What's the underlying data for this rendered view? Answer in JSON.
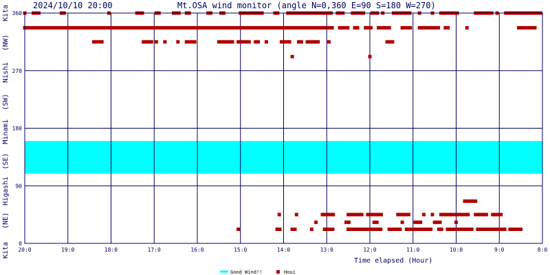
{
  "header": {
    "datetime": "2024/10/10 20:00",
    "title": "Mt.OSA wind monitor (angle N=0,360 E=90 S=180 W=270)"
  },
  "chart_data": {
    "type": "scatter",
    "title": "Mt.OSA wind monitor (angle N=0,360 E=90 S=180 W=270)",
    "xlabel": "Time elapsed (Hour)",
    "ylabel": "",
    "x_unit": "hours elapsed (20:0 = 0, 8:0 = 12)",
    "x_tick_labels": [
      "20:0",
      "19:0",
      "18:0",
      "17:0",
      "16:0",
      "15:0",
      "14:0",
      "13:0",
      "12:0",
      "11:0",
      "10:0",
      "9:0",
      "8:0"
    ],
    "y_tick_labels": [
      "0",
      "90",
      "180",
      "270",
      "360"
    ],
    "xlim": [
      0,
      12
    ],
    "ylim": [
      0,
      360
    ],
    "side_labels": [
      "Kita",
      "(NE)",
      "Higashi",
      "(SE)",
      "Minami",
      "(SW)",
      "Nishi",
      "(NW)",
      "Kita"
    ],
    "good_wind_band": {
      "from": 109,
      "to": 160,
      "color": "#00ffff",
      "label": "Good Wind!!"
    },
    "series": [
      {
        "name": "Houi",
        "color": "#b00000",
        "runs": [
          {
            "x0": 0.0,
            "x1": 7.15,
            "y": 337
          },
          {
            "x0": 7.3,
            "x1": 7.5,
            "y": 337
          },
          {
            "x0": 7.65,
            "x1": 7.75,
            "y": 337
          },
          {
            "x0": 7.9,
            "x1": 8.05,
            "y": 337
          },
          {
            "x0": 8.2,
            "x1": 8.5,
            "y": 337
          },
          {
            "x0": 8.75,
            "x1": 8.95,
            "y": 337
          },
          {
            "x0": 9.15,
            "x1": 9.6,
            "y": 337
          },
          {
            "x0": 9.75,
            "x1": 9.85,
            "y": 337
          },
          {
            "x0": 10.25,
            "x1": 10.3,
            "y": 337
          },
          {
            "x0": 11.45,
            "x1": 11.85,
            "y": 337
          },
          {
            "x0": 0.0,
            "x1": 0.05,
            "y": 360
          },
          {
            "x0": 0.2,
            "x1": 0.35,
            "y": 360
          },
          {
            "x0": 0.85,
            "x1": 0.95,
            "y": 360
          },
          {
            "x0": 1.95,
            "x1": 2.0,
            "y": 360
          },
          {
            "x0": 2.6,
            "x1": 2.75,
            "y": 360
          },
          {
            "x0": 3.05,
            "x1": 3.15,
            "y": 360
          },
          {
            "x0": 3.45,
            "x1": 3.6,
            "y": 360
          },
          {
            "x0": 3.75,
            "x1": 3.85,
            "y": 360
          },
          {
            "x0": 4.25,
            "x1": 4.35,
            "y": 360
          },
          {
            "x0": 4.55,
            "x1": 4.65,
            "y": 360
          },
          {
            "x0": 5.0,
            "x1": 5.55,
            "y": 360
          },
          {
            "x0": 5.8,
            "x1": 5.9,
            "y": 360
          },
          {
            "x0": 6.1,
            "x1": 7.1,
            "y": 360
          },
          {
            "x0": 7.25,
            "x1": 7.4,
            "y": 360
          },
          {
            "x0": 7.6,
            "x1": 7.9,
            "y": 360
          },
          {
            "x0": 8.05,
            "x1": 8.2,
            "y": 360
          },
          {
            "x0": 8.3,
            "x1": 8.35,
            "y": 360
          },
          {
            "x0": 8.55,
            "x1": 8.95,
            "y": 360
          },
          {
            "x0": 9.15,
            "x1": 9.2,
            "y": 360
          },
          {
            "x0": 9.45,
            "x1": 9.5,
            "y": 360
          },
          {
            "x0": 9.65,
            "x1": 10.05,
            "y": 360
          },
          {
            "x0": 10.45,
            "x1": 10.85,
            "y": 360
          },
          {
            "x0": 10.95,
            "x1": 11.0,
            "y": 360
          },
          {
            "x0": 11.15,
            "x1": 12.0,
            "y": 360
          },
          {
            "x0": 1.6,
            "x1": 1.8,
            "y": 315
          },
          {
            "x0": 2.75,
            "x1": 2.95,
            "y": 315
          },
          {
            "x0": 3.05,
            "x1": 3.1,
            "y": 315
          },
          {
            "x0": 3.25,
            "x1": 3.3,
            "y": 315
          },
          {
            "x0": 3.55,
            "x1": 3.6,
            "y": 315
          },
          {
            "x0": 3.75,
            "x1": 3.95,
            "y": 315
          },
          {
            "x0": 4.5,
            "x1": 4.85,
            "y": 315
          },
          {
            "x0": 4.95,
            "x1": 5.2,
            "y": 315
          },
          {
            "x0": 5.35,
            "x1": 5.45,
            "y": 315
          },
          {
            "x0": 5.6,
            "x1": 5.65,
            "y": 315
          },
          {
            "x0": 5.95,
            "x1": 6.15,
            "y": 315
          },
          {
            "x0": 6.35,
            "x1": 6.45,
            "y": 315
          },
          {
            "x0": 6.55,
            "x1": 6.85,
            "y": 315
          },
          {
            "x0": 7.05,
            "x1": 7.1,
            "y": 315
          },
          {
            "x0": 8.4,
            "x1": 8.55,
            "y": 315
          },
          {
            "x0": 6.2,
            "x1": 6.25,
            "y": 292
          },
          {
            "x0": 8.0,
            "x1": 8.05,
            "y": 292
          },
          {
            "x0": 10.2,
            "x1": 10.45,
            "y": 66
          },
          {
            "x0": 5.9,
            "x1": 5.95,
            "y": 45
          },
          {
            "x0": 6.3,
            "x1": 6.35,
            "y": 45
          },
          {
            "x0": 6.9,
            "x1": 7.15,
            "y": 45
          },
          {
            "x0": 7.5,
            "x1": 7.85,
            "y": 45
          },
          {
            "x0": 7.95,
            "x1": 8.3,
            "y": 45
          },
          {
            "x0": 8.65,
            "x1": 8.95,
            "y": 45
          },
          {
            "x0": 9.25,
            "x1": 9.3,
            "y": 45
          },
          {
            "x0": 9.45,
            "x1": 9.5,
            "y": 45
          },
          {
            "x0": 9.65,
            "x1": 10.3,
            "y": 45
          },
          {
            "x0": 10.45,
            "x1": 10.75,
            "y": 45
          },
          {
            "x0": 10.85,
            "x1": 11.05,
            "y": 45
          },
          {
            "x0": 6.75,
            "x1": 6.8,
            "y": 33
          },
          {
            "x0": 7.45,
            "x1": 7.55,
            "y": 33
          },
          {
            "x0": 8.1,
            "x1": 8.2,
            "y": 33
          },
          {
            "x0": 8.75,
            "x1": 8.8,
            "y": 33
          },
          {
            "x0": 9.05,
            "x1": 9.2,
            "y": 33
          },
          {
            "x0": 9.5,
            "x1": 9.65,
            "y": 33
          },
          {
            "x0": 10.0,
            "x1": 10.05,
            "y": 33
          },
          {
            "x0": 4.95,
            "x1": 5.0,
            "y": 22
          },
          {
            "x0": 5.85,
            "x1": 5.95,
            "y": 22
          },
          {
            "x0": 6.2,
            "x1": 6.3,
            "y": 22
          },
          {
            "x0": 6.65,
            "x1": 6.7,
            "y": 22
          },
          {
            "x0": 6.95,
            "x1": 7.15,
            "y": 22
          },
          {
            "x0": 7.5,
            "x1": 8.25,
            "y": 22
          },
          {
            "x0": 8.45,
            "x1": 8.7,
            "y": 22
          },
          {
            "x0": 8.85,
            "x1": 9.45,
            "y": 22
          },
          {
            "x0": 9.6,
            "x1": 9.7,
            "y": 22
          },
          {
            "x0": 9.8,
            "x1": 10.4,
            "y": 22
          },
          {
            "x0": 10.5,
            "x1": 11.15,
            "y": 22
          },
          {
            "x0": 11.25,
            "x1": 11.55,
            "y": 22
          }
        ]
      }
    ],
    "legend": {
      "position": "bottom",
      "entries": [
        {
          "label": "Good Wind!!",
          "color": "#00ffff",
          "shape": "line"
        },
        {
          "label": "Houi",
          "color": "#b00000",
          "shape": "square"
        }
      ]
    },
    "grid": true
  }
}
